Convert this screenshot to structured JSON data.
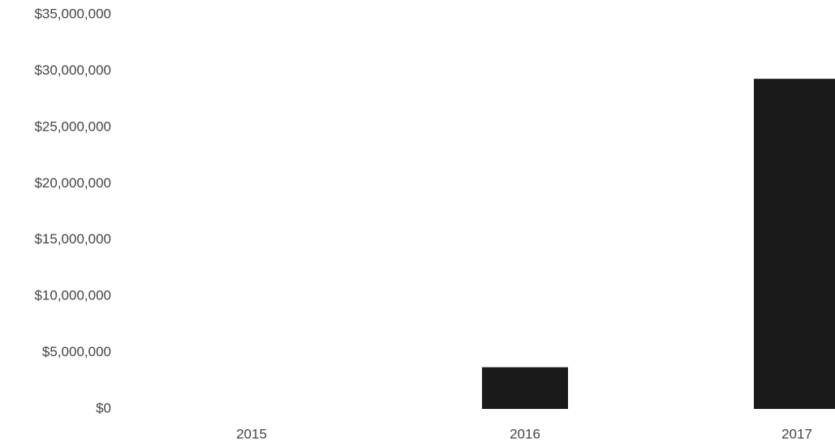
{
  "chart_data": {
    "type": "bar",
    "categories": [
      "2015",
      "2016",
      "2017"
    ],
    "values": [
      0,
      3700000,
      29300000
    ],
    "ylim": [
      0,
      35000000
    ],
    "y_ticks": [
      {
        "value": 0,
        "label": "$0"
      },
      {
        "value": 5000000,
        "label": "$5,000,000"
      },
      {
        "value": 10000000,
        "label": "$10,000,000"
      },
      {
        "value": 15000000,
        "label": "$15,000,000"
      },
      {
        "value": 20000000,
        "label": "$20,000,000"
      },
      {
        "value": 25000000,
        "label": "$25,000,000"
      },
      {
        "value": 30000000,
        "label": "$30,000,000"
      },
      {
        "value": 35000000,
        "label": "$35,000,000"
      }
    ],
    "grid": false,
    "legend": "none",
    "bar_color": "#1a1a1a"
  }
}
